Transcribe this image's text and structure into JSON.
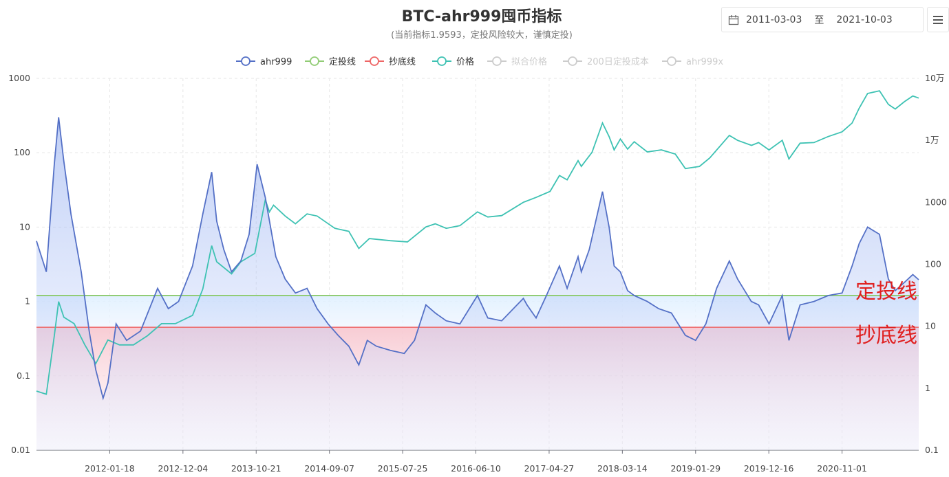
{
  "title": "BTC-ahr999囤币指标",
  "subtitle": "(当前指标1.9593，定投风险较大，谨慎定投)",
  "date_range": {
    "start": "2011-03-03",
    "separator": "至",
    "end": "2021-10-03"
  },
  "icons": {
    "calendar": "calendar-icon",
    "menu": "menu-icon"
  },
  "chart_data": {
    "type": "line",
    "title": "BTC-ahr999囤币指标",
    "x_start": "2011-03-03",
    "x_end": "2021-10-03",
    "x_ticks": [
      "2012-01-18",
      "2012-12-04",
      "2013-10-21",
      "2014-09-07",
      "2015-07-25",
      "2016-06-10",
      "2017-04-27",
      "2018-03-14",
      "2019-01-29",
      "2019-12-16",
      "2020-11-01"
    ],
    "y_left": {
      "scale": "log",
      "min": 0.01,
      "max": 1000,
      "ticks": [
        "0.01",
        "0.1",
        "1",
        "10",
        "100",
        "1000"
      ]
    },
    "y_right": {
      "scale": "log",
      "min": 0.1,
      "max": 100000,
      "ticks": [
        "0.1",
        "1",
        "10",
        "100",
        "1000",
        "1万",
        "10万"
      ]
    },
    "legend": [
      {
        "name": "ahr999",
        "color": "#5470c6",
        "active": true
      },
      {
        "name": "定投线",
        "color": "#91cc75",
        "active": true
      },
      {
        "name": "抄底线",
        "color": "#ee6666",
        "active": true
      },
      {
        "name": "价格",
        "color": "#3ec2b3",
        "active": true
      },
      {
        "name": "拟合价格",
        "color": "#cccccc",
        "active": false
      },
      {
        "name": "200日定投成本",
        "color": "#cccccc",
        "active": false
      },
      {
        "name": "ahr999x",
        "color": "#cccccc",
        "active": false
      }
    ],
    "lines": {
      "dca": 1.2,
      "bottom": 0.45,
      "dca_label": "定投线",
      "bottom_label": "抄底线"
    },
    "series": [
      {
        "name": "ahr999",
        "axis": "left",
        "x": [
          "2011-03-03",
          "2011-04-15",
          "2011-05-20",
          "2011-06-08",
          "2011-06-30",
          "2011-08-01",
          "2011-09-15",
          "2011-10-20",
          "2011-11-18",
          "2011-12-20",
          "2012-01-10",
          "2012-02-15",
          "2012-04-01",
          "2012-06-01",
          "2012-08-15",
          "2012-10-01",
          "2012-11-15",
          "2013-01-15",
          "2013-03-01",
          "2013-04-09",
          "2013-05-01",
          "2013-06-01",
          "2013-07-05",
          "2013-08-15",
          "2013-09-20",
          "2013-10-25",
          "2013-11-30",
          "2014-01-15",
          "2014-02-25",
          "2014-04-11",
          "2014-06-01",
          "2014-07-15",
          "2014-09-01",
          "2014-10-15",
          "2014-12-01",
          "2015-01-14",
          "2015-02-20",
          "2015-04-01",
          "2015-06-01",
          "2015-08-01",
          "2015-09-15",
          "2015-11-04",
          "2015-12-15",
          "2016-02-01",
          "2016-04-01",
          "2016-06-17",
          "2016-08-01",
          "2016-10-01",
          "2017-01-04",
          "2017-01-20",
          "2017-03-01",
          "2017-04-15",
          "2017-06-11",
          "2017-07-15",
          "2017-09-01",
          "2017-09-15",
          "2017-10-20",
          "2017-12-17",
          "2018-01-15",
          "2018-02-06",
          "2018-03-05",
          "2018-04-06",
          "2018-05-05",
          "2018-07-01",
          "2018-08-20",
          "2018-10-15",
          "2018-12-15",
          "2019-01-29",
          "2019-03-15",
          "2019-05-01",
          "2019-06-26",
          "2019-08-01",
          "2019-09-30",
          "2019-11-01",
          "2019-12-17",
          "2020-02-13",
          "2020-03-13",
          "2020-05-01",
          "2020-07-01",
          "2020-09-01",
          "2020-11-01",
          "2020-12-15",
          "2021-01-15",
          "2021-02-21",
          "2021-04-14",
          "2021-05-23",
          "2021-06-22",
          "2021-08-01",
          "2021-09-07",
          "2021-10-03"
        ],
        "values": [
          6.5,
          2.5,
          70,
          300,
          80,
          15,
          2.5,
          0.4,
          0.12,
          0.05,
          0.08,
          0.5,
          0.3,
          0.4,
          1.5,
          0.8,
          1.0,
          3,
          15,
          55,
          12,
          5,
          2.5,
          3.5,
          8,
          70,
          25,
          4,
          2,
          1.3,
          1.5,
          0.8,
          0.5,
          0.35,
          0.25,
          0.14,
          0.3,
          0.25,
          0.22,
          0.2,
          0.3,
          0.9,
          0.7,
          0.55,
          0.5,
          1.2,
          0.6,
          0.55,
          1.1,
          0.9,
          0.6,
          1.2,
          3,
          1.5,
          4,
          2.5,
          5,
          30,
          10,
          3,
          2.5,
          1.4,
          1.2,
          1.0,
          0.8,
          0.7,
          0.35,
          0.3,
          0.5,
          1.5,
          3.5,
          2,
          1,
          0.9,
          0.5,
          1.2,
          0.3,
          0.9,
          1.0,
          1.2,
          1.3,
          3,
          6,
          10,
          8,
          2,
          1.4,
          1.8,
          2.3,
          1.96
        ]
      },
      {
        "name": "价格",
        "axis": "right",
        "x": [
          "2011-03-03",
          "2011-04-15",
          "2011-05-20",
          "2011-06-08",
          "2011-07-01",
          "2011-08-15",
          "2011-10-01",
          "2011-11-18",
          "2012-01-10",
          "2012-03-01",
          "2012-05-01",
          "2012-07-01",
          "2012-09-01",
          "2012-11-01",
          "2013-01-15",
          "2013-03-01",
          "2013-04-09",
          "2013-05-01",
          "2013-07-05",
          "2013-08-15",
          "2013-10-15",
          "2013-11-30",
          "2013-12-18",
          "2014-01-05",
          "2014-02-25",
          "2014-04-11",
          "2014-06-01",
          "2014-07-15",
          "2014-10-01",
          "2014-12-01",
          "2015-01-14",
          "2015-03-01",
          "2015-06-01",
          "2015-08-15",
          "2015-11-04",
          "2015-12-15",
          "2016-02-01",
          "2016-04-01",
          "2016-06-17",
          "2016-08-01",
          "2016-10-01",
          "2017-01-04",
          "2017-03-01",
          "2017-05-01",
          "2017-06-11",
          "2017-07-15",
          "2017-09-01",
          "2017-09-15",
          "2017-11-01",
          "2017-12-17",
          "2018-01-15",
          "2018-02-06",
          "2018-03-05",
          "2018-04-06",
          "2018-05-05",
          "2018-07-01",
          "2018-09-01",
          "2018-11-01",
          "2018-12-15",
          "2019-02-15",
          "2019-04-01",
          "2019-06-26",
          "2019-08-01",
          "2019-10-01",
          "2019-11-01",
          "2019-12-17",
          "2020-02-13",
          "2020-03-13",
          "2020-05-01",
          "2020-07-01",
          "2020-09-01",
          "2020-11-01",
          "2020-12-15",
          "2021-01-15",
          "2021-02-21",
          "2021-04-14",
          "2021-05-23",
          "2021-06-22",
          "2021-08-01",
          "2021-09-07",
          "2021-10-03"
        ],
        "values": [
          0.9,
          0.8,
          7,
          25,
          14,
          11,
          5,
          2.5,
          6,
          5,
          5,
          7,
          11,
          11,
          15,
          40,
          200,
          110,
          70,
          110,
          150,
          1100,
          700,
          900,
          600,
          450,
          650,
          600,
          380,
          340,
          180,
          260,
          240,
          230,
          400,
          450,
          380,
          420,
          700,
          580,
          610,
          1000,
          1200,
          1500,
          2700,
          2300,
          4700,
          3800,
          6400,
          19000,
          11500,
          7000,
          10500,
          7200,
          9500,
          6500,
          7000,
          6000,
          3500,
          3800,
          5200,
          12000,
          10000,
          8300,
          9200,
          7000,
          10000,
          5000,
          9000,
          9200,
          11500,
          13700,
          19000,
          33000,
          57000,
          63000,
          38000,
          32000,
          42000,
          52000,
          48000
        ]
      }
    ]
  }
}
